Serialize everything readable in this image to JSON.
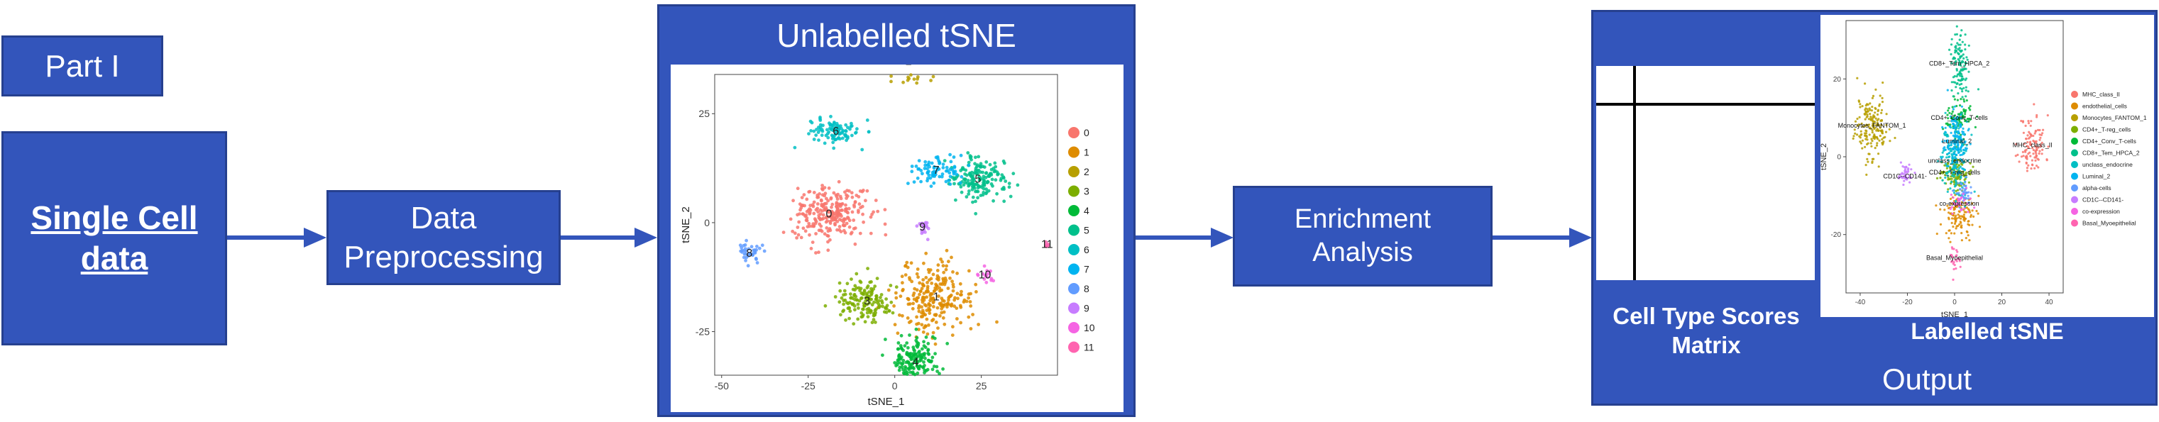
{
  "part_label": "Part I",
  "single_cell_label": "Single Cell\ndata",
  "preprocessing_label": "Data\nPreprocessing",
  "enrichment_label": "Enrichment\nAnalysis",
  "unlabelled_title": "Unlabelled tSNE",
  "output": {
    "matrix_label": "Cell Type Scores\nMatrix",
    "labelled_title": "Labelled tSNE",
    "output_label": "Output"
  },
  "colors": {
    "block": "#3355bb",
    "block_border": "#26408f",
    "arrow": "#3355bb"
  },
  "chart_data": [
    {
      "type": "scatter",
      "title": "",
      "xlabel": "tSNE_1",
      "ylabel": "tSNE_2",
      "xlim": [
        -52,
        47
      ],
      "ylim": [
        -35,
        34
      ],
      "xticks": [
        -50,
        -25,
        0,
        25
      ],
      "yticks": [
        25,
        0,
        -25
      ],
      "legend_position": "right",
      "legend": [
        "0",
        "1",
        "2",
        "3",
        "4",
        "5",
        "6",
        "7",
        "8",
        "9",
        "10",
        "11"
      ],
      "colors": [
        "#f8766d",
        "#de8c00",
        "#b79f00",
        "#7cae00",
        "#00ba38",
        "#00c08b",
        "#00bfc4",
        "#00b4f0",
        "#619cff",
        "#c77cff",
        "#f564e3",
        "#ff64b0"
      ],
      "clusters": [
        {
          "label": "0",
          "x": -19,
          "y": 2,
          "sx": 7.5,
          "sy": 4.5,
          "n": 260
        },
        {
          "label": "1",
          "x": 12,
          "y": -17,
          "sx": 8,
          "sy": 6,
          "n": 240
        },
        {
          "label": "2",
          "x": 4,
          "y": 37,
          "sx": 5,
          "sy": 3.2,
          "n": 150
        },
        {
          "label": "3",
          "x": -8,
          "y": -18,
          "sx": 6,
          "sy": 3.5,
          "n": 150
        },
        {
          "label": "4",
          "x": 6,
          "y": -32,
          "sx": 4.8,
          "sy": 4.5,
          "n": 170
        },
        {
          "label": "5",
          "x": 24,
          "y": 10,
          "sx": 6,
          "sy": 3.5,
          "n": 170
        },
        {
          "label": "6",
          "x": -17,
          "y": 21,
          "sx": 6,
          "sy": 2.2,
          "n": 100
        },
        {
          "label": "7",
          "x": 12,
          "y": 12,
          "sx": 5,
          "sy": 2,
          "n": 80
        },
        {
          "label": "8",
          "x": -42,
          "y": -7,
          "sx": 2.5,
          "sy": 1.5,
          "n": 40
        },
        {
          "label": "9",
          "x": 8,
          "y": -1,
          "sx": 1.5,
          "sy": 1.5,
          "n": 20
        },
        {
          "label": "10",
          "x": 26,
          "y": -12,
          "sx": 2,
          "sy": 1.3,
          "n": 15
        },
        {
          "label": "11",
          "x": 44,
          "y": -5,
          "sx": 0.6,
          "sy": 0.6,
          "n": 6
        }
      ]
    },
    {
      "type": "scatter",
      "title": "",
      "xlabel": "tSNE_1",
      "ylabel": "tSNE_2",
      "xlim": [
        -46,
        46
      ],
      "ylim": [
        -35,
        35
      ],
      "xticks": [
        -40,
        -20,
        0,
        20,
        40
      ],
      "yticks": [
        20,
        0,
        -20
      ],
      "legend_position": "right",
      "legend": [
        "MHC_class_II",
        "endothelial_cells",
        "Monocytes_FANTOM_1",
        "CD4+_T-reg_cells",
        "CD4+_Conv_T-cells",
        "CD8+_Tem_HPCA_2",
        "unclass_endocrine",
        "Luminal_2",
        "alpha-cells",
        "CD1C--CD141-",
        "co-expression",
        "Basal_Myoepithelial"
      ],
      "colors": [
        "#f8766d",
        "#de8c00",
        "#b79f00",
        "#7cae00",
        "#00ba38",
        "#00c08b",
        "#00bfc4",
        "#00b4f0",
        "#619cff",
        "#c77cff",
        "#f564e3",
        "#ff64b0"
      ],
      "point_labels": [
        "CD8+_Tem_HPCA_2",
        "CD4+_Conv_T-cells",
        "Basal_Myoepithelial",
        "Monocytes_FANTOM_1",
        "Luminal_2",
        "CD4+_T-reg_cells",
        "CD1C--CD141-",
        "unclass_endocrine",
        "co-expression",
        "MHC_class_II"
      ],
      "clusters": [
        {
          "label": "MHC_class_II",
          "x": 33,
          "y": 3,
          "sx": 4,
          "sy": 5.5,
          "n": 110
        },
        {
          "label": "endothelial_cells",
          "x": 2,
          "y": -15,
          "sx": 5,
          "sy": 4,
          "n": 120
        },
        {
          "label": "Monocytes_FANTOM_1",
          "x": -35,
          "y": 8,
          "sx": 5,
          "sy": 6,
          "n": 180
        },
        {
          "label": "CD4+_T-reg_cells",
          "x": 0,
          "y": -4,
          "sx": 4,
          "sy": 3,
          "n": 120
        },
        {
          "label": "CD4+_Conv_T-cells",
          "x": 2,
          "y": 10,
          "sx": 3.5,
          "sy": 3.5,
          "n": 90
        },
        {
          "label": "CD8+_Tem_HPCA_2",
          "x": 2,
          "y": 24,
          "sx": 2.5,
          "sy": 6,
          "n": 120
        },
        {
          "label": "unclass_endocrine",
          "x": 0,
          "y": -1,
          "sx": 4,
          "sy": 7,
          "n": 150
        },
        {
          "label": "Luminal_2",
          "x": 1,
          "y": 4,
          "sx": 3.5,
          "sy": 5,
          "n": 140
        },
        {
          "label": "alpha-cells",
          "x": 4,
          "y": -9,
          "sx": 3,
          "sy": 2,
          "n": 40
        },
        {
          "label": "CD1C--CD141-",
          "x": -21,
          "y": -5,
          "sx": 2.5,
          "sy": 2,
          "n": 40
        },
        {
          "label": "co-expression",
          "x": 2,
          "y": -12,
          "sx": 3,
          "sy": 3,
          "n": 30
        },
        {
          "label": "Basal_Myoepithelial",
          "x": 0,
          "y": -26,
          "sx": 2,
          "sy": 2.5,
          "n": 25
        }
      ]
    }
  ]
}
